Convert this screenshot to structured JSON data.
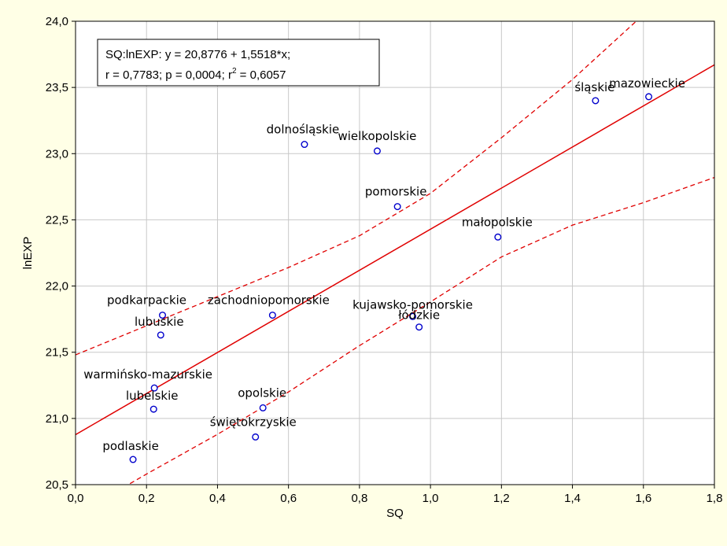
{
  "chart_data": {
    "type": "scatter",
    "xlabel": "SQ",
    "ylabel": "lnEXP",
    "xlim": [
      0.0,
      1.8
    ],
    "ylim": [
      20.5,
      24.0
    ],
    "xticks": [
      "0,0",
      "0,2",
      "0,4",
      "0,6",
      "0,8",
      "1,0",
      "1,2",
      "1,4",
      "1,6",
      "1,8"
    ],
    "yticks": [
      "20,5",
      "21,0",
      "21,5",
      "22,0",
      "22,5",
      "23,0",
      "23,5",
      "24,0"
    ],
    "grid": true,
    "points": [
      {
        "label": "mazowieckie",
        "x": 1.615,
        "y": 23.43
      },
      {
        "label": "śląskie",
        "x": 1.465,
        "y": 23.4
      },
      {
        "label": "dolnośląskie",
        "x": 0.645,
        "y": 23.07
      },
      {
        "label": "wielkopolskie",
        "x": 0.85,
        "y": 23.02
      },
      {
        "label": "pomorskie",
        "x": 0.907,
        "y": 22.6
      },
      {
        "label": "małopolskie",
        "x": 1.19,
        "y": 22.37
      },
      {
        "label": "podkarpackie",
        "x": 0.245,
        "y": 21.78
      },
      {
        "label": "zachodniopomorskie",
        "x": 0.555,
        "y": 21.78
      },
      {
        "label": "kujawsko-pomorskie",
        "x": 0.95,
        "y": 21.77
      },
      {
        "label": "łódzkie",
        "x": 0.968,
        "y": 21.69
      },
      {
        "label": "lubuskie",
        "x": 0.24,
        "y": 21.63
      },
      {
        "label": "warmińsko-mazurskie",
        "x": 0.222,
        "y": 21.23
      },
      {
        "label": "lubelskie",
        "x": 0.22,
        "y": 21.07
      },
      {
        "label": "opolskie",
        "x": 0.528,
        "y": 21.08
      },
      {
        "label": "świętokrzyskie",
        "x": 0.507,
        "y": 20.86
      },
      {
        "label": "podlaskie",
        "x": 0.162,
        "y": 20.69
      }
    ],
    "regression": {
      "intercept": 20.8776,
      "slope": 1.5518,
      "color": "#e00000"
    },
    "confidence_band": {
      "upper": [
        [
          0.0,
          21.48
        ],
        [
          0.2,
          21.7
        ],
        [
          0.4,
          21.92
        ],
        [
          0.6,
          22.14
        ],
        [
          0.8,
          22.38
        ],
        [
          1.0,
          22.7
        ],
        [
          1.2,
          23.12
        ],
        [
          1.4,
          23.56
        ],
        [
          1.6,
          24.05
        ],
        [
          1.8,
          24.55
        ]
      ],
      "lower": [
        [
          0.0,
          20.27
        ],
        [
          0.2,
          20.58
        ],
        [
          0.4,
          20.88
        ],
        [
          0.6,
          21.2
        ],
        [
          0.8,
          21.55
        ],
        [
          1.0,
          21.88
        ],
        [
          1.2,
          22.22
        ],
        [
          1.4,
          22.46
        ],
        [
          1.6,
          22.63
        ],
        [
          1.8,
          22.82
        ]
      ],
      "color": "#e00000"
    },
    "stats_box": {
      "line1": "SQ:lnEXP:   y = 20,8776 + 1,5518*x;",
      "line2_prefix": "r = 0,7783; p = 0,0004; r",
      "line2_exp": "2",
      "line2_suffix": " = 0,6057",
      "placement": "top-left"
    },
    "marker_color": "#0000cc",
    "background": "#ffffe6",
    "plot_background": "#ffffff"
  }
}
